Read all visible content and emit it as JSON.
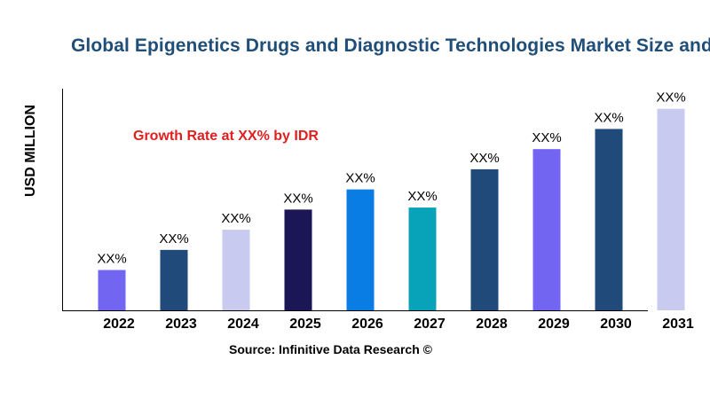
{
  "chart_data": {
    "type": "bar",
    "title": "Global Epigenetics Drugs and Diagnostic Technologies Market Size and Forecast",
    "ylabel": "USD MILLION",
    "xlabel": "",
    "annotation": "Growth Rate at XX% by IDR",
    "source": "Source: Infinitive Data Research ©",
    "categories": [
      "2022",
      "2023",
      "2024",
      "2025",
      "2026",
      "2027",
      "2028",
      "2029",
      "2030",
      "2031"
    ],
    "values": [
      20,
      30,
      40,
      50,
      60,
      51,
      70,
      80,
      90,
      100
    ],
    "data_labels": [
      "XX%",
      "XX%",
      "XX%",
      "XX%",
      "XX%",
      "XX%",
      "XX%",
      "XX%",
      "XX%",
      "XX%"
    ],
    "colors": [
      "#7165f2",
      "#1f4a7a",
      "#c9caf0",
      "#1b1656",
      "#0a7de5",
      "#08a3b8",
      "#1f4a7a",
      "#7165f2",
      "#1f4a7a",
      "#c9caf0"
    ],
    "ylim": [
      0,
      110
    ],
    "grid": false
  }
}
